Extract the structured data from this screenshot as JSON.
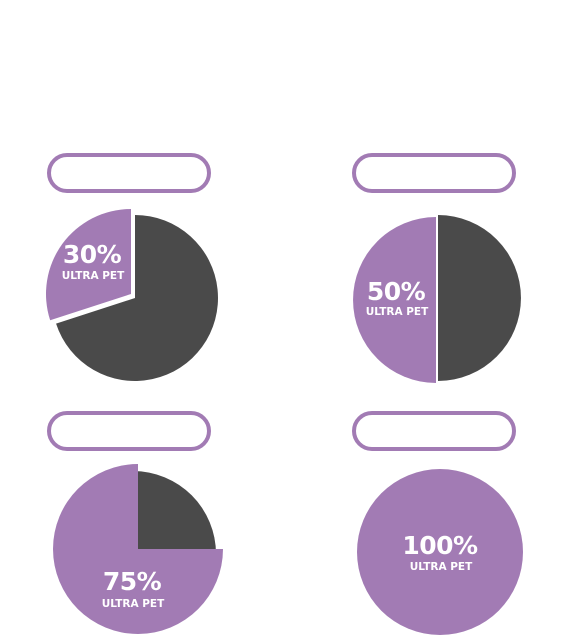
{
  "colors": {
    "share": "#a27bb4",
    "remainder": "#4a4a4a",
    "pill_border": "#a27bb4",
    "text": "#ffffff"
  },
  "chart_data": [
    {
      "type": "pie",
      "slices": [
        {
          "label": "ULTRA PET",
          "value": 30,
          "display": "30%"
        },
        {
          "label": "",
          "value": 70
        }
      ]
    },
    {
      "type": "pie",
      "slices": [
        {
          "label": "ULTRA PET",
          "value": 50,
          "display": "50%"
        },
        {
          "label": "",
          "value": 50
        }
      ]
    },
    {
      "type": "pie",
      "slices": [
        {
          "label": "ULTRA PET",
          "value": 75,
          "display": "75%"
        },
        {
          "label": "",
          "value": 25
        }
      ]
    },
    {
      "type": "pie",
      "slices": [
        {
          "label": "ULTRA PET",
          "value": 100,
          "display": "100%"
        }
      ]
    }
  ]
}
